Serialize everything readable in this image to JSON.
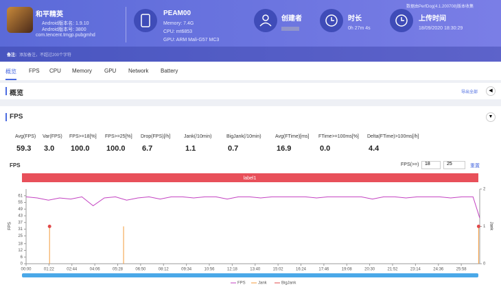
{
  "header": {
    "app_name": "和平精英",
    "android_version_name": "Android版本名: 1.9.10",
    "android_version_code": "Android版本号: 3800",
    "package": "com.tencent.tmgp.pubgmhd",
    "device": "PEAM00",
    "memory": "Memory: 7.4G",
    "cpu": "CPU: mt6853",
    "gpu": "GPU: ARM Mali-G57 MC3",
    "creator_label": "创建者",
    "duration_label": "时长",
    "duration": "0h 27m 4s",
    "upload_label": "上传时间",
    "upload_time": "18/09/2020 18:30:29",
    "collected_by": "数据由PerfDog(4.1.200708)版本收集"
  },
  "note": {
    "label": "备注:",
    "placeholder": "添加备注，不超过200个字符"
  },
  "tabs": [
    "概览",
    "FPS",
    "CPU",
    "Memory",
    "GPU",
    "Network",
    "Battery"
  ],
  "overview": {
    "title": "概览",
    "export": "导出全部"
  },
  "fps_section": {
    "title": "FPS",
    "stats": [
      {
        "label": "Avg(FPS)",
        "value": "59.3"
      },
      {
        "label": "Var(FPS)",
        "value": "3.0"
      },
      {
        "label": "FPS>=18[%]",
        "value": "100.0"
      },
      {
        "label": "FPS>=25[%]",
        "value": "100.0"
      },
      {
        "label": "Drop(FPS)[/h]",
        "value": "6.7"
      },
      {
        "label": "Jank(/10min)",
        "value": "1.1"
      },
      {
        "label": "BigJank(/10min)",
        "value": "0.7"
      },
      {
        "label": "Avg(FTime)[ms]",
        "value": "16.9"
      },
      {
        "label": "FTime>=100ms[%]",
        "value": "0.0"
      },
      {
        "label": "Delta(FTime)>100ms[/h]",
        "value": "4.4"
      }
    ],
    "filter": {
      "label": "FPS(>=)",
      "low": 18,
      "high": 25,
      "reset": "重置"
    }
  },
  "chart_data": {
    "type": "line",
    "title": "FPS",
    "band_label": "label1",
    "y_label": "FPS",
    "y2_label": "Jank",
    "xlim": [
      0,
      1624
    ],
    "ylim": [
      0,
      67
    ],
    "y2lim": [
      0,
      2
    ],
    "xticks": [
      {
        "value": 0,
        "label": "00:00"
      },
      {
        "value": 82,
        "label": "01:22"
      },
      {
        "value": 164,
        "label": "02:44"
      },
      {
        "value": 246,
        "label": "04:06"
      },
      {
        "value": 328,
        "label": "05:28"
      },
      {
        "value": 410,
        "label": "06:50"
      },
      {
        "value": 492,
        "label": "08:12"
      },
      {
        "value": 574,
        "label": "09:34"
      },
      {
        "value": 656,
        "label": "10:56"
      },
      {
        "value": 738,
        "label": "12:18"
      },
      {
        "value": 820,
        "label": "13:40"
      },
      {
        "value": 902,
        "label": "15:02"
      },
      {
        "value": 984,
        "label": "16:24"
      },
      {
        "value": 1066,
        "label": "17:46"
      },
      {
        "value": 1148,
        "label": "19:08"
      },
      {
        "value": 1230,
        "label": "20:30"
      },
      {
        "value": 1312,
        "label": "21:52"
      },
      {
        "value": 1394,
        "label": "23:14"
      },
      {
        "value": 1476,
        "label": "24:36"
      },
      {
        "value": 1558,
        "label": "25:58"
      }
    ],
    "yticks": [
      0,
      6,
      12,
      18,
      25,
      31,
      37,
      43,
      49,
      55,
      61
    ],
    "y2ticks": [
      0,
      1,
      2
    ],
    "series": [
      {
        "name": "FPS",
        "color": "#c23fc0",
        "x": [
          0,
          40,
          80,
          120,
          160,
          200,
          240,
          280,
          320,
          360,
          400,
          440,
          480,
          520,
          560,
          600,
          640,
          680,
          720,
          760,
          800,
          840,
          880,
          920,
          960,
          1000,
          1040,
          1080,
          1120,
          1160,
          1200,
          1240,
          1280,
          1320,
          1360,
          1400,
          1440,
          1480,
          1520,
          1560,
          1600,
          1624
        ],
        "values": [
          60,
          59,
          57,
          59,
          58,
          60,
          52,
          59,
          60,
          57,
          59,
          60,
          58,
          60,
          60,
          59,
          60,
          60,
          58,
          60,
          60,
          59,
          60,
          60,
          60,
          60,
          59,
          60,
          60,
          60,
          60,
          58,
          60,
          60,
          59,
          60,
          60,
          60,
          59,
          60,
          60,
          41
        ]
      },
      {
        "name": "Jank",
        "color": "#f39a3a",
        "axis": "y2",
        "x": [
          84,
          349,
          1620
        ],
        "values": [
          1,
          1,
          1
        ]
      },
      {
        "name": "BigJank",
        "color": "#e0484a",
        "axis": "y2",
        "x": [
          84,
          1620
        ],
        "values": [
          1,
          1
        ]
      }
    ]
  }
}
